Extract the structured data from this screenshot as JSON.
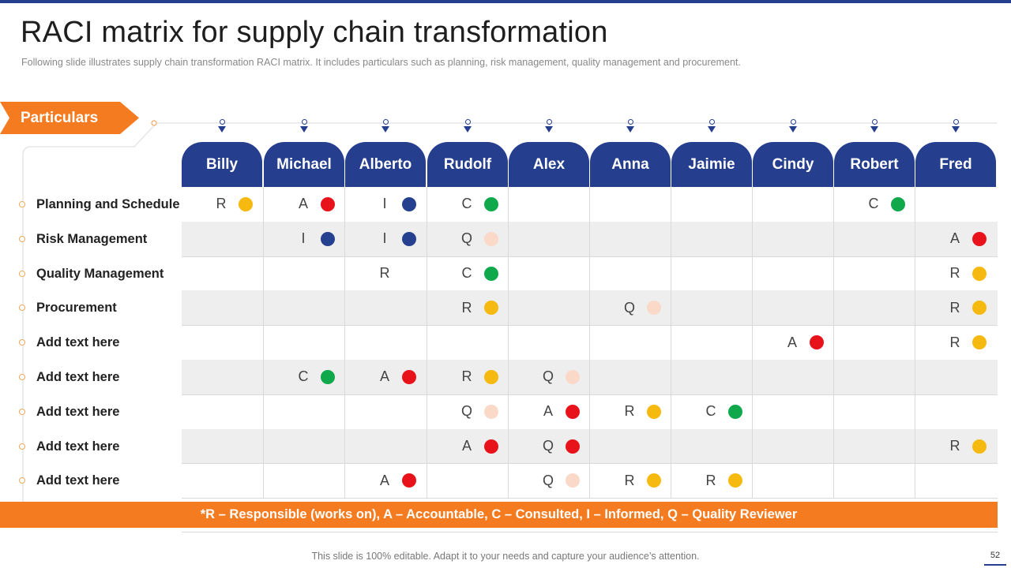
{
  "slide": {
    "title": "RACI matrix for supply chain transformation",
    "subtitle": "Following slide illustrates supply chain transformation RACI matrix. It includes particulars such as planning, risk management, quality management and procurement.",
    "particulars_label": "Particulars",
    "legend": "*R – Responsible (works on), A – Accountable, C – Consulted, I – Informed, Q – Quality Reviewer",
    "footer": "This slide is 100% editable. Adapt it to your needs and capture your audience’s attention.",
    "page_number": "52"
  },
  "colors": {
    "R": "#f6b90f",
    "A": "#e8131a",
    "C": "#0fa84a",
    "I": "#25408f",
    "Q": "#fad9c8"
  },
  "people": [
    "Billy",
    "Michael",
    "Alberto",
    "Rudolf",
    "Alex",
    "Anna",
    "Jaimie",
    "Cindy",
    "Robert",
    "Fred"
  ],
  "rows": [
    {
      "label": "Planning and Schedule",
      "cells": [
        [
          "R",
          "R"
        ],
        [
          "A",
          "A"
        ],
        [
          "I",
          "I"
        ],
        [
          "C",
          "C"
        ],
        null,
        null,
        null,
        null,
        [
          "C",
          "C"
        ],
        null
      ]
    },
    {
      "label": "Risk Management",
      "cells": [
        null,
        [
          "I",
          "I"
        ],
        [
          "I",
          "I"
        ],
        [
          "Q",
          "Q"
        ],
        null,
        null,
        null,
        null,
        null,
        [
          "A",
          "A"
        ]
      ]
    },
    {
      "label": "Quality Management",
      "cells": [
        null,
        null,
        [
          "R",
          null
        ],
        [
          "C",
          "C"
        ],
        null,
        null,
        null,
        null,
        null,
        [
          "R",
          "R"
        ]
      ]
    },
    {
      "label": "Procurement",
      "cells": [
        null,
        null,
        null,
        [
          "R",
          "R"
        ],
        null,
        [
          "Q",
          "Q"
        ],
        null,
        null,
        null,
        [
          "R",
          "R"
        ]
      ]
    },
    {
      "label": "Add text here",
      "cells": [
        null,
        null,
        null,
        null,
        null,
        null,
        null,
        [
          "A",
          "A"
        ],
        null,
        [
          "R",
          "R"
        ]
      ]
    },
    {
      "label": "Add text here",
      "cells": [
        null,
        [
          "C",
          "C"
        ],
        [
          "A",
          "A"
        ],
        [
          "R",
          "R"
        ],
        [
          "Q",
          "Q"
        ],
        null,
        null,
        null,
        null,
        null
      ]
    },
    {
      "label": "Add text here",
      "cells": [
        null,
        null,
        null,
        [
          "Q",
          "Q"
        ],
        [
          "A",
          "A"
        ],
        [
          "R",
          "R"
        ],
        [
          "C",
          "C"
        ],
        null,
        null,
        null
      ]
    },
    {
      "label": "Add text here",
      "cells": [
        null,
        null,
        null,
        [
          "A",
          "A"
        ],
        [
          "Q",
          "A"
        ],
        null,
        null,
        null,
        null,
        [
          "R",
          "R"
        ]
      ]
    },
    {
      "label": "Add text here",
      "cells": [
        null,
        null,
        [
          "A",
          "A"
        ],
        null,
        [
          "Q",
          "Q"
        ],
        [
          "R",
          "R"
        ],
        [
          "R",
          "R"
        ],
        null,
        null,
        null
      ]
    }
  ]
}
